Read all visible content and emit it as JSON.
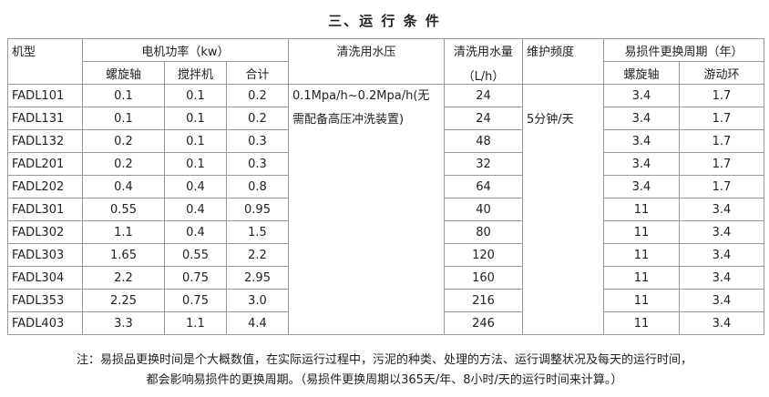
{
  "title": "三、运 行 条 件",
  "table": {
    "header": {
      "model": "机型",
      "power": "电机功率（kw）",
      "power_screw": "螺旋轴",
      "power_mixer": "搅拌机",
      "power_total": "合计",
      "pressure": "清洗用水压",
      "water": "清洗用水量",
      "water_unit": "（L/h）",
      "maintenance": "维护频度",
      "wear": "易损件更换周期（年）",
      "wear_screw": "螺旋轴",
      "wear_ring": "游动环"
    },
    "pressure": "0.1Mpa/h~0.2Mpa/h(无需配备高压冲洗装置)",
    "maintenance": "5分钟/天",
    "rows": [
      [
        "FADL101",
        "0.1",
        "0.1",
        "0.2",
        "24",
        "3.4",
        "1.7"
      ],
      [
        "FADL131",
        "0.1",
        "0.1",
        "0.2",
        "24",
        "3.4",
        "1.7"
      ],
      [
        "FADL132",
        "0.2",
        "0.1",
        "0.3",
        "48",
        "3.4",
        "1.7"
      ],
      [
        "FADL201",
        "0.2",
        "0.1",
        "0.3",
        "32",
        "3.4",
        "1.7"
      ],
      [
        "FADL202",
        "0.4",
        "0.4",
        "0.8",
        "64",
        "3.4",
        "1.7"
      ],
      [
        "FADL301",
        "0.55",
        "0.4",
        "0.95",
        "40",
        "11",
        "3.4"
      ],
      [
        "FADL302",
        "1.1",
        "0.4",
        "1.5",
        "80",
        "11",
        "3.4"
      ],
      [
        "FADL303",
        "1.65",
        "0.55",
        "2.2",
        "120",
        "11",
        "3.4"
      ],
      [
        "FADL304",
        "2.2",
        "0.75",
        "2.95",
        "160",
        "11",
        "3.4"
      ],
      [
        "FADL353",
        "2.25",
        "0.75",
        "3.0",
        "216",
        "11",
        "3.4"
      ],
      [
        "FADL403",
        "3.3",
        "1.1",
        "4.4",
        "246",
        "11",
        "3.4"
      ]
    ]
  },
  "notes": [
    "注：易损品更换时间是个大概数值，在实际运行过程中，污泥的种类、处理的方法、运行调整状况及每天的运行时间，",
    "都会影响易损件的更换周期。（易损件更换周期以365天/年、8小时/天的运行时间来计算。）"
  ]
}
